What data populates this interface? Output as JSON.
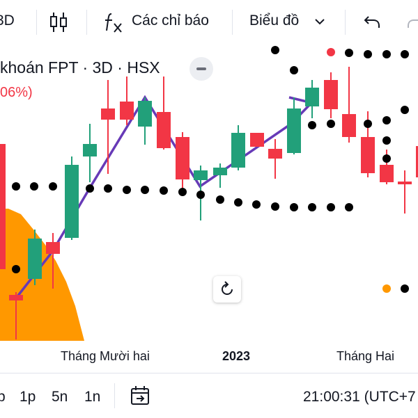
{
  "toolbar": {
    "interval": "3D",
    "indicators_label": "Các chỉ báo",
    "chart_type_label": "Biểu đồ"
  },
  "legend": {
    "title": "khoán FPT · 3D · HSX",
    "change": "06%)"
  },
  "time_axis": {
    "labels": [
      "Tháng Mười hai",
      "2023",
      "Tháng Hai"
    ]
  },
  "bottom_bar": {
    "ranges": [
      "p",
      "1p",
      "5n",
      "1n"
    ],
    "clock": "21:00:31 (UTC+7"
  },
  "colors": {
    "up": "#22a07a",
    "down": "#f23645",
    "cloud": "#ff9800",
    "zigzag": "#673ab7",
    "dots": "#000000"
  },
  "icons": [
    "candles-icon",
    "fx-icon",
    "chevron-down-icon",
    "undo-icon",
    "redo-icon",
    "minus-icon",
    "reset-icon",
    "calendar-goto-icon"
  ]
}
